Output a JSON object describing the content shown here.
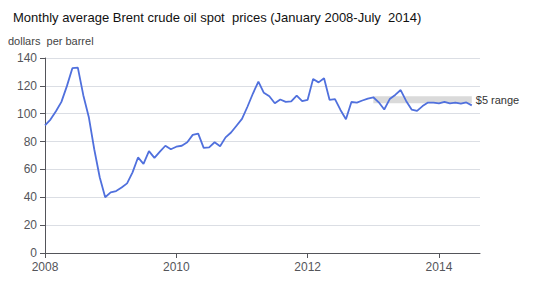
{
  "chart_data": {
    "type": "line",
    "title": "Monthly average Brent crude oil spot  prices (January 2008-July  2014)",
    "y_label": "dollars  per barrel",
    "x": [
      2008.0,
      2008.083333333,
      2008.166666667,
      2008.25,
      2008.333333333,
      2008.416666667,
      2008.5,
      2008.583333333,
      2008.666666667,
      2008.75,
      2008.833333333,
      2008.916666667,
      2009.0,
      2009.083333333,
      2009.166666667,
      2009.25,
      2009.333333333,
      2009.416666667,
      2009.5,
      2009.583333333,
      2009.666666667,
      2009.75,
      2009.833333333,
      2009.916666667,
      2010.0,
      2010.083333333,
      2010.166666667,
      2010.25,
      2010.333333333,
      2010.416666667,
      2010.5,
      2010.583333333,
      2010.666666667,
      2010.75,
      2010.833333333,
      2010.916666667,
      2011.0,
      2011.083333333,
      2011.166666667,
      2011.25,
      2011.333333333,
      2011.416666667,
      2011.5,
      2011.583333333,
      2011.666666667,
      2011.75,
      2011.833333333,
      2011.916666667,
      2012.0,
      2012.083333333,
      2012.166666667,
      2012.25,
      2012.333333333,
      2012.416666667,
      2012.5,
      2012.583333333,
      2012.666666667,
      2012.75,
      2012.833333333,
      2012.916666667,
      2013.0,
      2013.083333333,
      2013.166666667,
      2013.25,
      2013.333333333,
      2013.416666667,
      2013.5,
      2013.583333333,
      2013.666666667,
      2013.75,
      2013.833333333,
      2013.916666667,
      2014.0,
      2014.083333333,
      2014.166666667,
      2014.25,
      2014.333333333,
      2014.416666667,
      2014.5
    ],
    "values": [
      91.7,
      95.8,
      101.8,
      108.5,
      119.8,
      132.7,
      133.1,
      113.3,
      97.7,
      74.5,
      54.4,
      40.0,
      43.5,
      44.5,
      47.0,
      50.0,
      57.9,
      68.6,
      64.0,
      73.1,
      68.3,
      72.8,
      77.0,
      74.5,
      76.3,
      77.0,
      79.5,
      84.8,
      85.7,
      75.5,
      75.8,
      79.5,
      76.7,
      83.0,
      86.5,
      91.4,
      96.3,
      105.0,
      114.5,
      123.1,
      115.0,
      112.5,
      107.5,
      110.2,
      108.5,
      108.8,
      113.0,
      109.0,
      110.0,
      125.0,
      122.5,
      125.5,
      110.0,
      110.5,
      102.7,
      96.0,
      108.4,
      108.0,
      109.5,
      110.9,
      111.8,
      108.2,
      103.0,
      110.5,
      113.5,
      117.0,
      109.2,
      103.0,
      102.0,
      105.5,
      108.0,
      108.0,
      107.5,
      108.5,
      107.5,
      108.0,
      107.2,
      108.1,
      106.0
    ],
    "xlim": [
      2008.0,
      2014.625
    ],
    "xticks": [
      2008,
      2010,
      2012,
      2014
    ],
    "ylim": [
      0,
      140
    ],
    "yticks": [
      0,
      20,
      40,
      60,
      80,
      100,
      120,
      140
    ],
    "grid": "y",
    "shade": {
      "x": [
        2013.0,
        2014.5
      ],
      "lower": 107.5,
      "upper": 112.5,
      "label": "$5 range",
      "color": "#bbbbbb"
    }
  }
}
